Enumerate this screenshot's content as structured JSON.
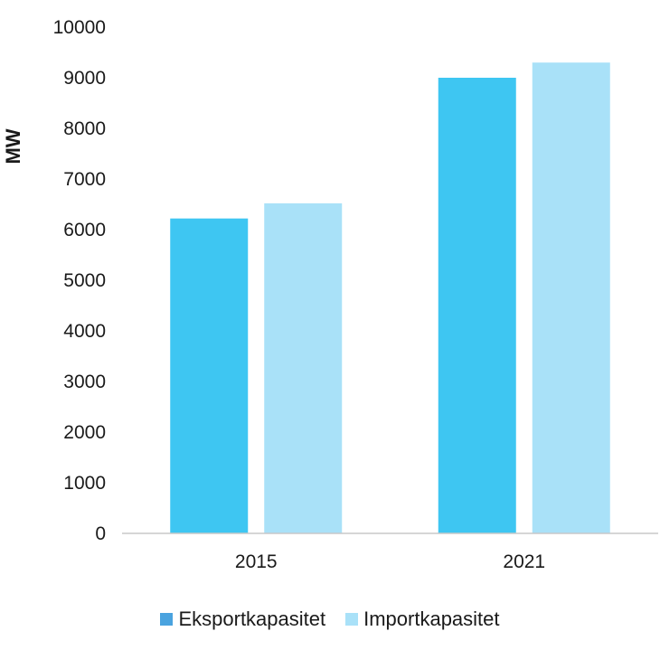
{
  "chart_data": {
    "type": "bar",
    "categories": [
      "2015",
      "2021"
    ],
    "series": [
      {
        "name": "Eksportkapasitet",
        "values": [
          6220,
          9000
        ],
        "color": "#3ec6f2",
        "legend_color": "#4aa3df"
      },
      {
        "name": "Importkapasitet",
        "values": [
          6520,
          9300
        ],
        "color": "#a9e1f8",
        "legend_color": "#a9e1f8"
      }
    ],
    "ylabel": "MW",
    "xlabel": "",
    "ylim": [
      0,
      10000
    ],
    "yticks": [
      "0",
      "1000",
      "2000",
      "3000",
      "4000",
      "5000",
      "6000",
      "7000",
      "8000",
      "9000",
      "10000"
    ],
    "grid": false,
    "legend_position": "bottom"
  }
}
